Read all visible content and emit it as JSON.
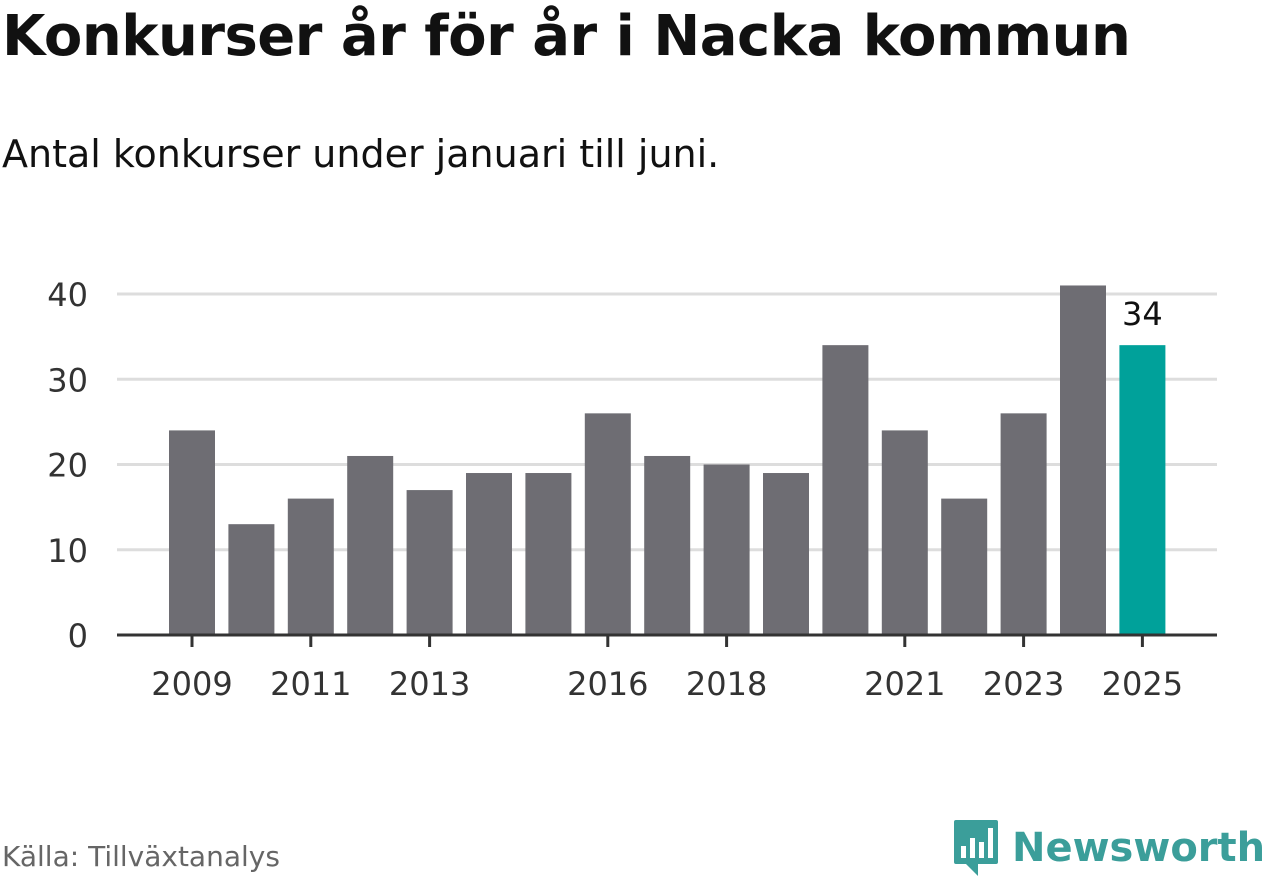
{
  "title": "Konkurser år för år i Nacka kommun",
  "subtitle": "Antal konkurser under januari till juni.",
  "source": "Källa: Tillväxtanalys",
  "brand": {
    "name": "Newsworthy",
    "icon": "newsworthy-logo-icon",
    "color": "#3b9e9a"
  },
  "colors": {
    "bar": "#6e6d73",
    "highlight": "#00a19a",
    "grid": "#dddddd",
    "axis": "#333333"
  },
  "chart_data": {
    "type": "bar",
    "categories": [
      "2009",
      "2010",
      "2011",
      "2012",
      "2013",
      "2014",
      "2015",
      "2016",
      "2017",
      "2018",
      "2019",
      "2020",
      "2021",
      "2022",
      "2023",
      "2024",
      "2025"
    ],
    "values": [
      24,
      13,
      16,
      21,
      17,
      19,
      19,
      26,
      21,
      20,
      19,
      34,
      24,
      16,
      26,
      41,
      34
    ],
    "x_tick_labels": [
      "2009",
      "2011",
      "2013",
      "2016",
      "2018",
      "2021",
      "2023",
      "2025"
    ],
    "y_ticks": [
      0,
      10,
      20,
      30,
      40
    ],
    "ylim": [
      0,
      40
    ],
    "grid": true,
    "highlight": {
      "category": "2025",
      "label": "34"
    },
    "legend": "none"
  }
}
